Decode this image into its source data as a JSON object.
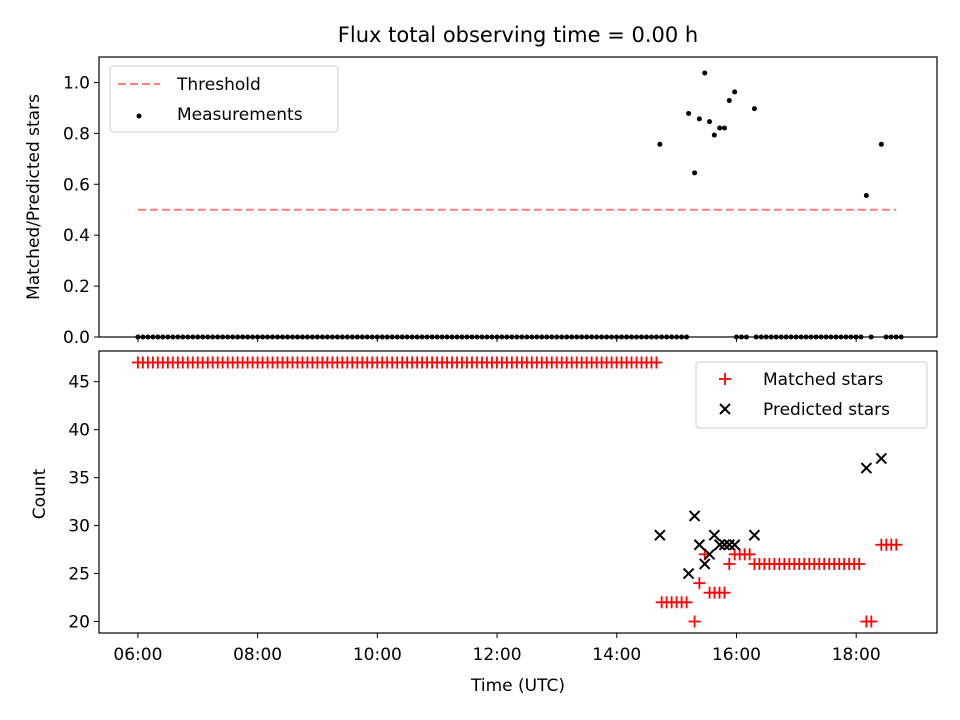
{
  "chart_data": [
    {
      "type": "scatter",
      "title": "Flux total observing time = 0.00 h",
      "xlabel": "",
      "ylabel": "Matched/Predicted stars",
      "xlim": [
        5.35,
        19.35
      ],
      "ylim": [
        0.0,
        1.1
      ],
      "x_unit": "hours UTC",
      "yticks": [
        0.0,
        0.2,
        0.4,
        0.6,
        0.8,
        1.0
      ],
      "ytick_labels": [
        "0.0",
        "0.2",
        "0.4",
        "0.6",
        "0.8",
        "1.0"
      ],
      "legend": {
        "position": "upper left",
        "entries": [
          "Threshold",
          "Measurements"
        ]
      },
      "grid": false,
      "series": [
        {
          "name": "Threshold",
          "kind": "dashed-line",
          "color": "#ff7f7f",
          "x": [
            6.0,
            18.67
          ],
          "y": [
            0.5,
            0.5
          ]
        },
        {
          "name": "Measurements",
          "kind": "scatter",
          "color": "#000000",
          "zero_x_ranges": [
            [
              6.0,
              14.67
            ],
            [
              14.75,
              15.17
            ],
            [
              16.0,
              16.2
            ],
            [
              16.33,
              18.08
            ],
            [
              18.25,
              18.33
            ],
            [
              18.5,
              18.75
            ]
          ],
          "zero_step_hours": 0.0833,
          "points": [
            [
              14.72,
              0.757
            ],
            [
              15.2,
              0.878
            ],
            [
              15.3,
              0.645
            ],
            [
              15.38,
              0.857
            ],
            [
              15.47,
              1.037
            ],
            [
              15.55,
              0.846
            ],
            [
              15.63,
              0.793
            ],
            [
              15.72,
              0.821
            ],
            [
              15.8,
              0.821
            ],
            [
              15.88,
              0.929
            ],
            [
              15.97,
              0.963
            ],
            [
              16.3,
              0.897
            ],
            [
              18.17,
              0.556
            ],
            [
              18.42,
              0.757
            ]
          ]
        }
      ]
    },
    {
      "type": "scatter",
      "title": "",
      "xlabel": "Time (UTC)",
      "ylabel": "Count",
      "xlim": [
        5.35,
        19.35
      ],
      "ylim": [
        18.8,
        48.2
      ],
      "x_unit": "hours UTC",
      "xticks": [
        6,
        8,
        10,
        12,
        14,
        16,
        18
      ],
      "xtick_labels": [
        "06:00",
        "08:00",
        "10:00",
        "12:00",
        "14:00",
        "16:00",
        "18:00"
      ],
      "yticks": [
        20,
        25,
        30,
        35,
        40,
        45
      ],
      "ytick_labels": [
        "20",
        "25",
        "30",
        "35",
        "40",
        "45"
      ],
      "legend": {
        "position": "upper right",
        "entries": [
          "Matched stars",
          "Predicted stars"
        ]
      },
      "grid": false,
      "series": [
        {
          "name": "Matched stars",
          "marker": "+",
          "color": "#ff0000",
          "step_hours": 0.0833,
          "runs": [
            [
              6.0,
              14.67,
              47
            ],
            [
              14.75,
              15.17,
              22
            ],
            [
              15.3,
              15.3,
              20
            ],
            [
              15.38,
              15.38,
              24
            ],
            [
              15.47,
              15.55,
              27
            ],
            [
              15.55,
              15.8,
              23
            ],
            [
              15.88,
              15.88,
              26
            ],
            [
              15.97,
              16.22,
              27
            ],
            [
              16.3,
              18.08,
              26
            ],
            [
              18.17,
              18.33,
              20
            ],
            [
              18.42,
              18.75,
              28
            ]
          ]
        },
        {
          "name": "Predicted stars",
          "marker": "x",
          "color": "#000000",
          "points": [
            [
              14.72,
              29
            ],
            [
              15.2,
              25
            ],
            [
              15.3,
              31
            ],
            [
              15.38,
              28
            ],
            [
              15.47,
              26
            ],
            [
              15.55,
              27
            ],
            [
              15.63,
              29
            ],
            [
              15.72,
              28
            ],
            [
              15.8,
              28
            ],
            [
              15.88,
              28
            ],
            [
              15.97,
              28
            ],
            [
              16.3,
              29
            ],
            [
              18.17,
              36
            ],
            [
              18.42,
              37
            ]
          ]
        }
      ]
    }
  ],
  "legend_labels": {
    "threshold": "Threshold",
    "measurements": "Measurements",
    "matched": "Matched stars",
    "predicted": "Predicted stars"
  }
}
